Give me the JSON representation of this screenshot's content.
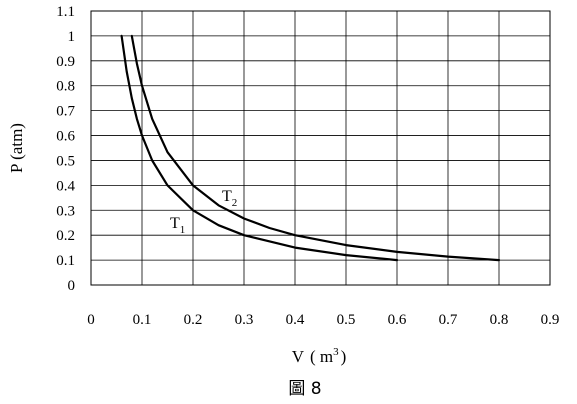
{
  "chart_data": {
    "type": "line",
    "title": "",
    "xlabel_main": "V",
    "xlabel_unit": "( m",
    "xlabel_exp": "3",
    "xlabel_close": ")",
    "ylabel": "P (atm)",
    "caption": "圖 8",
    "xlim": [
      0,
      0.9
    ],
    "ylim": [
      0,
      1.1
    ],
    "xticks": [
      "0",
      "0.1",
      "0.2",
      "0.3",
      "0.4",
      "0.5",
      "0.6",
      "0.7",
      "0.8",
      "0.9"
    ],
    "yticks": [
      "0",
      "0.1",
      "0.2",
      "0.3",
      "0.4",
      "0.5",
      "0.6",
      "0.7",
      "0.8",
      "0.9",
      "1",
      "1.1"
    ],
    "grid": true,
    "series": [
      {
        "name": "T1",
        "label_main": "T",
        "label_sub": "1",
        "x": [
          0.06,
          0.07,
          0.08,
          0.09,
          0.1,
          0.12,
          0.15,
          0.2,
          0.25,
          0.3,
          0.4,
          0.5,
          0.6
        ],
        "y": [
          1.0,
          0.857,
          0.75,
          0.667,
          0.6,
          0.5,
          0.4,
          0.3,
          0.24,
          0.2,
          0.15,
          0.12,
          0.1
        ]
      },
      {
        "name": "T2",
        "label_main": "T",
        "label_sub": "2",
        "x": [
          0.08,
          0.09,
          0.1,
          0.12,
          0.15,
          0.2,
          0.25,
          0.3,
          0.35,
          0.4,
          0.5,
          0.6,
          0.7,
          0.8
        ],
        "y": [
          1.0,
          0.889,
          0.8,
          0.667,
          0.533,
          0.4,
          0.32,
          0.267,
          0.229,
          0.2,
          0.16,
          0.133,
          0.114,
          0.1
        ]
      }
    ]
  }
}
